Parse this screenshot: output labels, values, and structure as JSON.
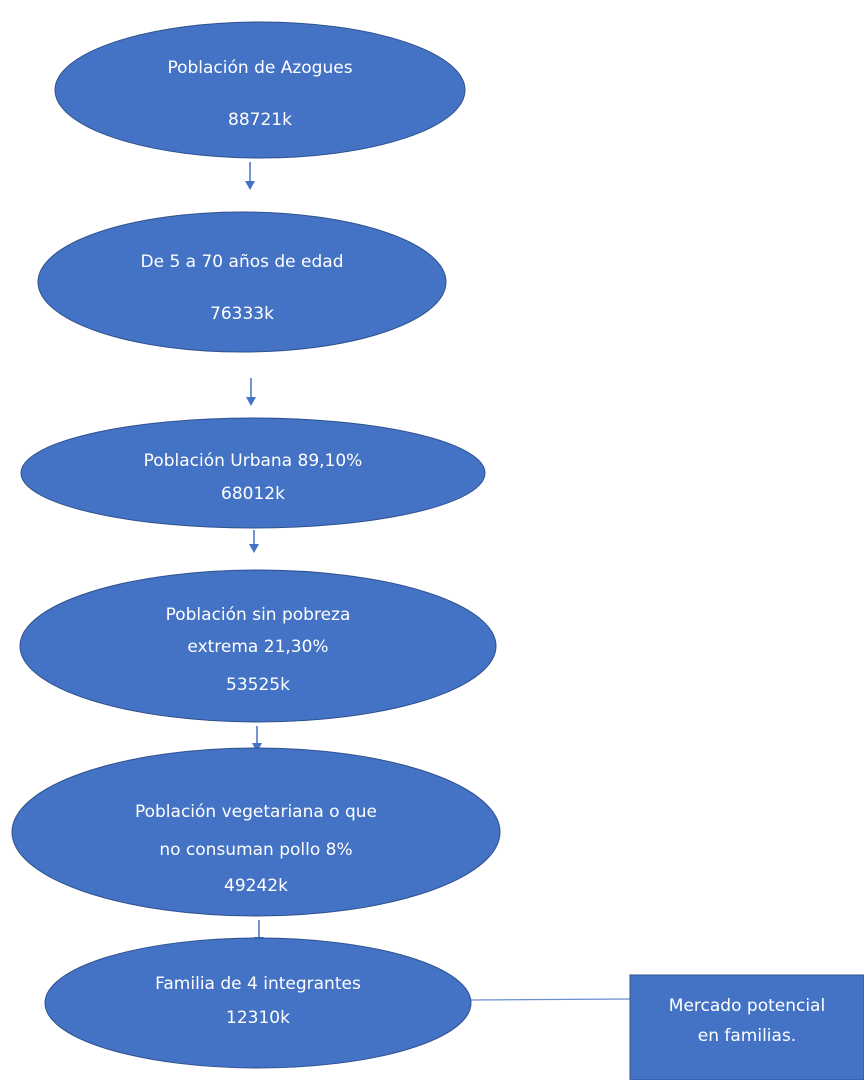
{
  "colors": {
    "ellipse_fill": "#4472C4",
    "ellipse_stroke": "#2F528F",
    "arrow": "#4472C4",
    "connector": "#6A8FCF",
    "text": "#FFFFFF"
  },
  "nodes": [
    {
      "id": "poblacion-azogues",
      "shape": "ellipse",
      "lines": [
        "Población de Azogues",
        "",
        "88721k"
      ]
    },
    {
      "id": "edad-5-70",
      "shape": "ellipse",
      "lines": [
        "De 5 a 70 años de edad",
        "",
        "76333k"
      ]
    },
    {
      "id": "poblacion-urbana",
      "shape": "ellipse",
      "lines": [
        "Población Urbana 89,10%",
        "68012k"
      ]
    },
    {
      "id": "sin-pobreza",
      "shape": "ellipse",
      "lines": [
        "Población sin pobreza",
        "extrema 21,30%",
        "53525k"
      ]
    },
    {
      "id": "vegetariana",
      "shape": "ellipse",
      "lines": [
        "Población vegetariana o que",
        "no consuman pollo 8%",
        "49242k"
      ]
    },
    {
      "id": "familia-4",
      "shape": "ellipse",
      "lines": [
        "Familia de 4 integrantes",
        "12310k"
      ]
    },
    {
      "id": "mercado-potencial",
      "shape": "rectangle",
      "lines": [
        "Mercado potencial",
        "en familias."
      ]
    }
  ],
  "edges": [
    {
      "from": "poblacion-azogues",
      "to": "edad-5-70",
      "style": "arrow"
    },
    {
      "from": "edad-5-70",
      "to": "poblacion-urbana",
      "style": "arrow"
    },
    {
      "from": "poblacion-urbana",
      "to": "sin-pobreza",
      "style": "arrow"
    },
    {
      "from": "sin-pobreza",
      "to": "vegetariana",
      "style": "arrow"
    },
    {
      "from": "vegetariana",
      "to": "familia-4",
      "style": "arrow"
    },
    {
      "from": "familia-4",
      "to": "mercado-potencial",
      "style": "line"
    }
  ]
}
